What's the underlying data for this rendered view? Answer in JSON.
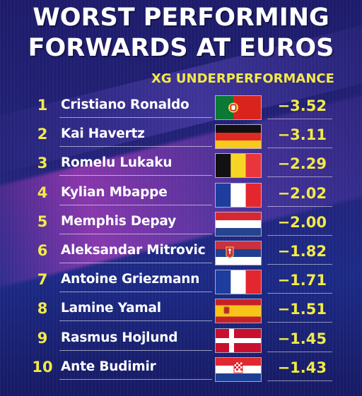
{
  "title": {
    "line1": "WORST PERFORMING",
    "line2": "FORWARDS AT EUROS"
  },
  "colors": {
    "accent": "#f2ea48",
    "text": "#ffffff",
    "background": "#1f1f70"
  },
  "chart_data": {
    "type": "table",
    "title": "WORST PERFORMING FORWARDS AT EUROS",
    "value_label": "XG UNDERPERFORMANCE",
    "rows": [
      {
        "rank": "1",
        "player": "Cristiano Ronaldo",
        "country_flag": "portugal-flag-icon",
        "value": "−3.52"
      },
      {
        "rank": "2",
        "player": "Kai Havertz",
        "country_flag": "germany-flag-icon",
        "value": "−3.11"
      },
      {
        "rank": "3",
        "player": "Romelu Lukaku",
        "country_flag": "belgium-flag-icon",
        "value": "−2.29"
      },
      {
        "rank": "4",
        "player": "Kylian Mbappe",
        "country_flag": "france-flag-icon",
        "value": "−2.02"
      },
      {
        "rank": "5",
        "player": "Memphis Depay",
        "country_flag": "netherlands-flag-icon",
        "value": "−2.00"
      },
      {
        "rank": "6",
        "player": "Aleksandar Mitrovic",
        "country_flag": "serbia-flag-icon",
        "value": "−1.82"
      },
      {
        "rank": "7",
        "player": "Antoine Griezmann",
        "country_flag": "france-flag-icon",
        "value": "−1.71"
      },
      {
        "rank": "8",
        "player": "Lamine Yamal",
        "country_flag": "spain-flag-icon",
        "value": "−1.51"
      },
      {
        "rank": "9",
        "player": "Rasmus Hojlund",
        "country_flag": "denmark-flag-icon",
        "value": "−1.45"
      },
      {
        "rank": "10",
        "player": "Ante Budimir",
        "country_flag": "croatia-flag-icon",
        "value": "−1.43"
      }
    ]
  }
}
